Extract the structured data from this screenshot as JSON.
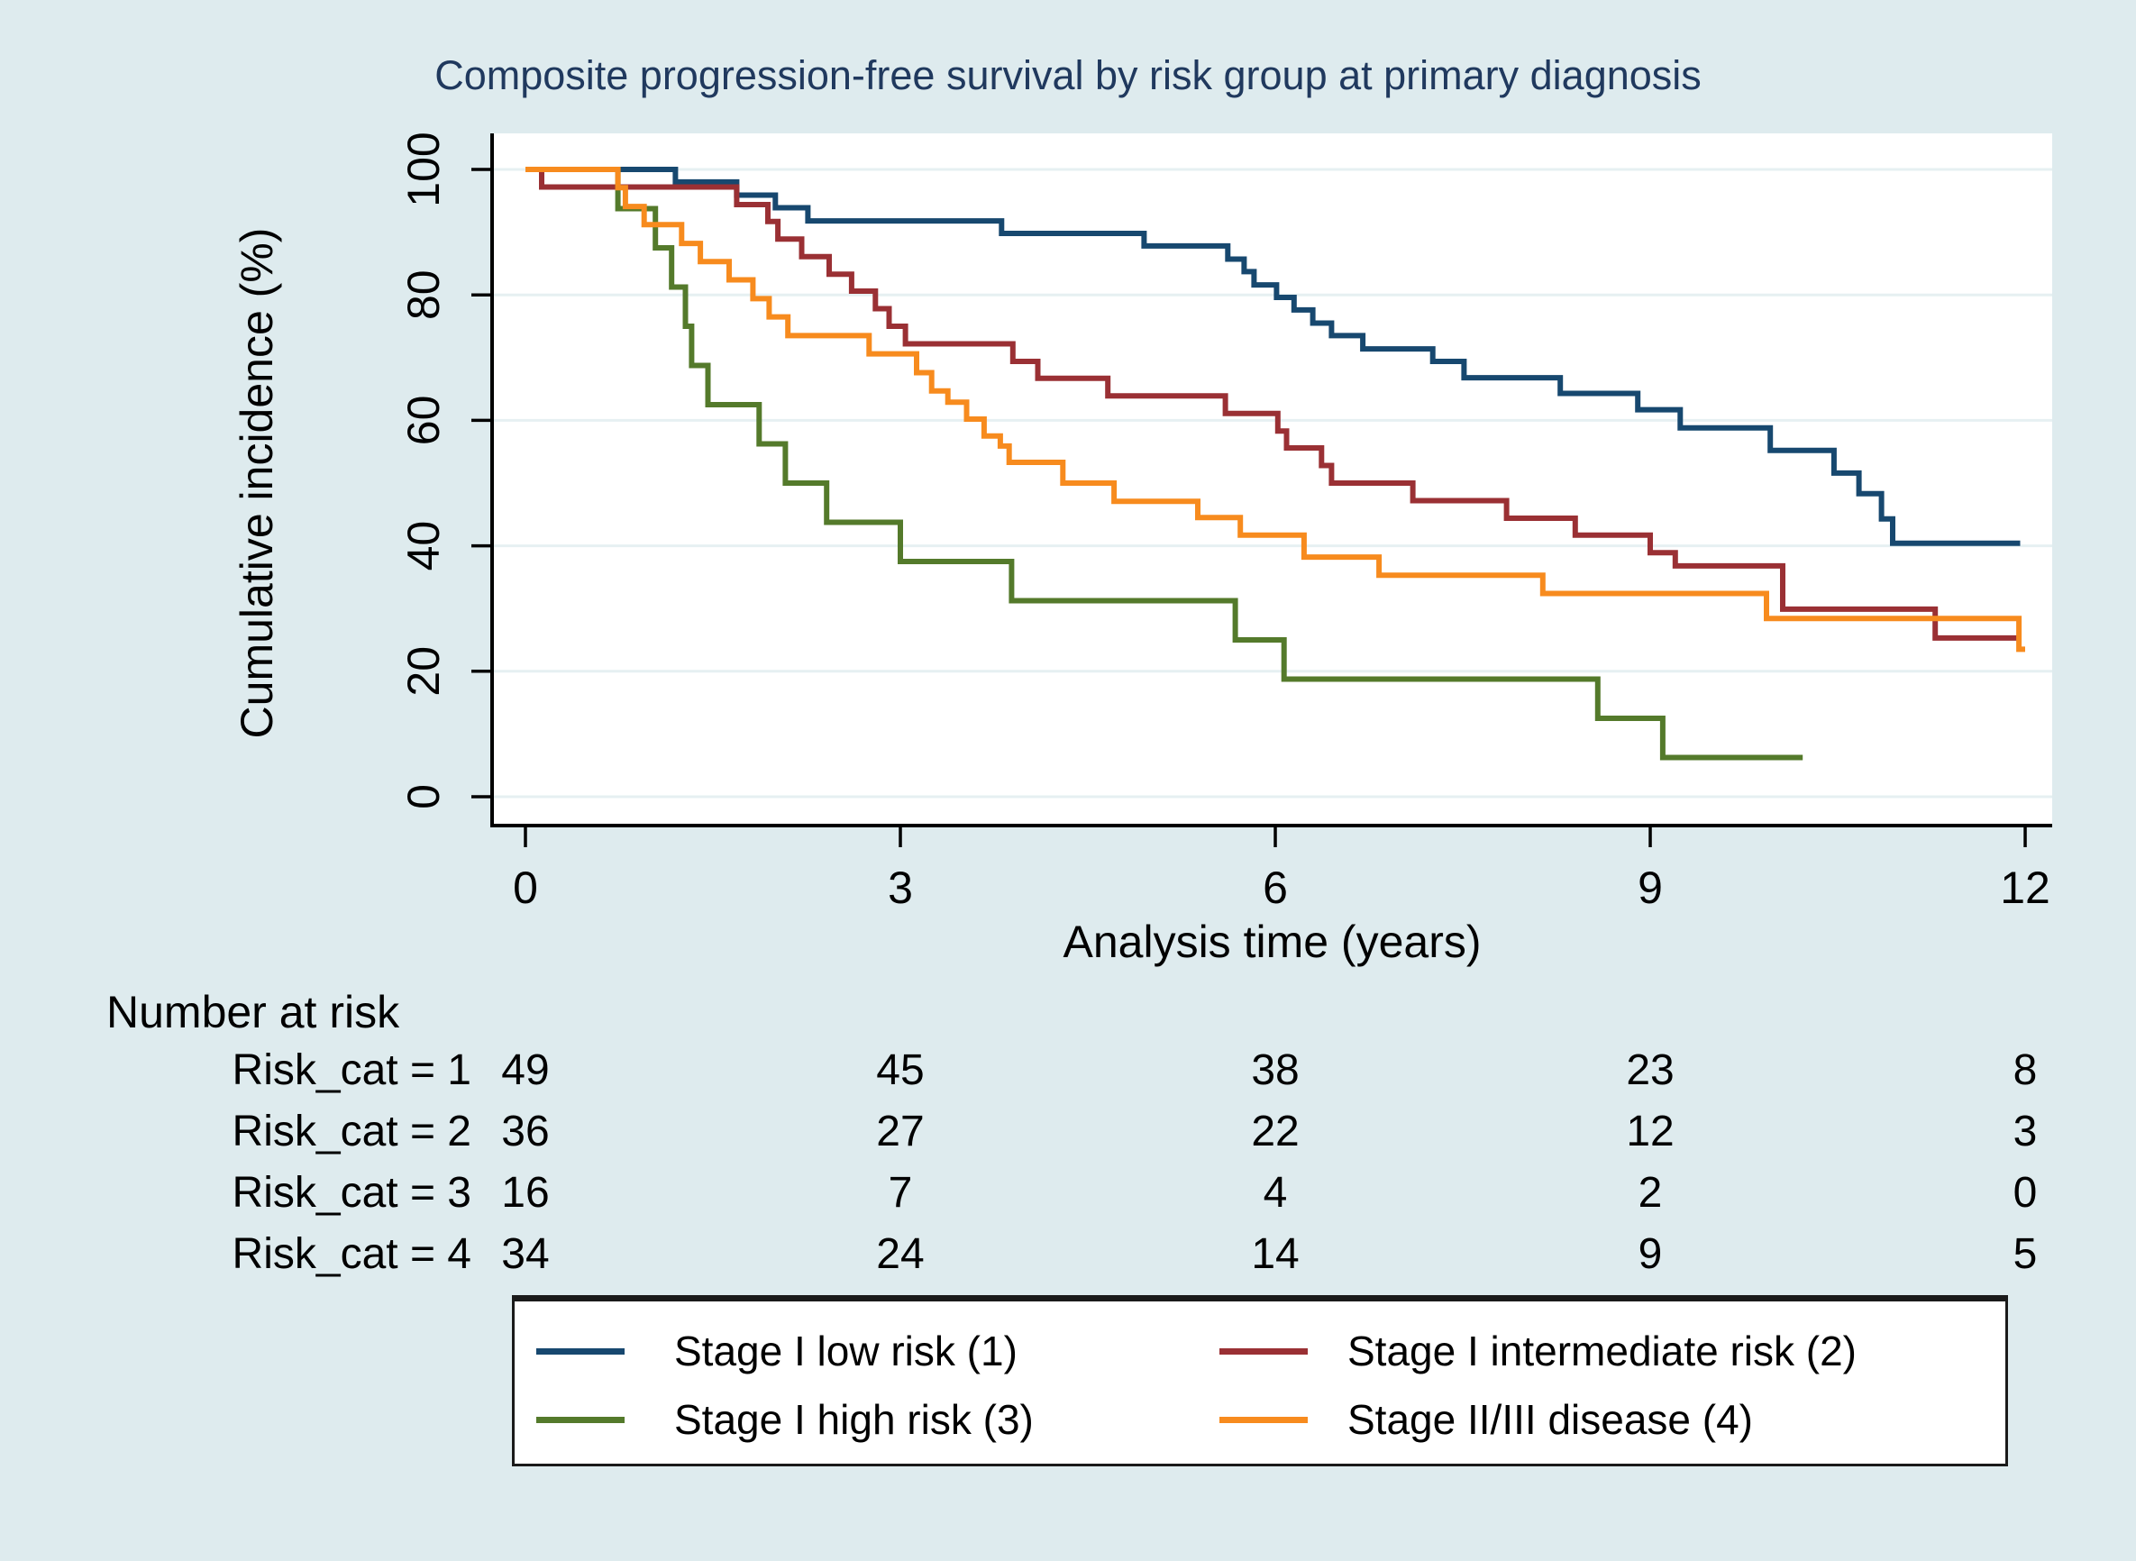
{
  "title": "Composite progression-free survival by risk group at primary diagnosis",
  "colors": {
    "background": "#DEEBEE",
    "plot_background": "#FFFFFF",
    "gridline": "#E6F0F2",
    "axis": "#000000",
    "title_text": "#20395E",
    "series_blue": "#17486F",
    "series_maroon": "#9A3034",
    "series_green": "#547A2B",
    "series_orange": "#F78B1E"
  },
  "chart_data": {
    "type": "line",
    "subtype": "step-survival",
    "title": "Composite progression-free survival by risk group at primary diagnosis",
    "xlabel": "Analysis time (years)",
    "ylabel": "Cumulative incidence (%)",
    "xlim": [
      0,
      12.2
    ],
    "ylim": [
      0,
      100
    ],
    "xticks": [
      0,
      3,
      6,
      9,
      12
    ],
    "yticks": [
      0,
      20,
      40,
      60,
      80,
      100
    ],
    "grid": "horizontal",
    "legend_position": "bottom",
    "series": [
      {
        "name": "Stage I low risk (1)",
        "color": "#17486F",
        "end": 11.96,
        "points": [
          [
            0,
            100
          ],
          [
            1.2,
            98.0
          ],
          [
            1.69,
            95.9
          ],
          [
            2.0,
            93.9
          ],
          [
            2.26,
            91.8
          ],
          [
            3.81,
            89.8
          ],
          [
            4.95,
            87.8
          ],
          [
            5.62,
            85.7
          ],
          [
            5.75,
            83.7
          ],
          [
            5.83,
            81.6
          ],
          [
            6.01,
            79.6
          ],
          [
            6.15,
            77.6
          ],
          [
            6.3,
            75.5
          ],
          [
            6.45,
            73.5
          ],
          [
            6.7,
            71.4
          ],
          [
            7.26,
            69.4
          ],
          [
            7.51,
            66.8
          ],
          [
            8.28,
            64.3
          ],
          [
            8.9,
            61.7
          ],
          [
            9.24,
            58.8
          ],
          [
            9.96,
            55.2
          ],
          [
            10.47,
            51.6
          ],
          [
            10.67,
            48.3
          ],
          [
            10.85,
            44.3
          ],
          [
            10.94,
            40.4
          ]
        ]
      },
      {
        "name": "Stage I intermediate risk (2)",
        "color": "#9A3034",
        "end": 11.94,
        "points": [
          [
            0,
            100
          ],
          [
            0.13,
            97.2
          ],
          [
            1.69,
            94.4
          ],
          [
            1.94,
            91.7
          ],
          [
            2.02,
            88.9
          ],
          [
            2.21,
            86.1
          ],
          [
            2.43,
            83.3
          ],
          [
            2.61,
            80.6
          ],
          [
            2.8,
            77.8
          ],
          [
            2.91,
            75.0
          ],
          [
            3.04,
            72.2
          ],
          [
            3.9,
            69.4
          ],
          [
            4.1,
            66.7
          ],
          [
            4.66,
            63.9
          ],
          [
            5.6,
            61.1
          ],
          [
            6.02,
            58.3
          ],
          [
            6.09,
            55.6
          ],
          [
            6.37,
            52.8
          ],
          [
            6.45,
            50.0
          ],
          [
            7.1,
            47.2
          ],
          [
            7.85,
            44.4
          ],
          [
            8.4,
            41.7
          ],
          [
            9.0,
            38.9
          ],
          [
            9.2,
            36.8
          ],
          [
            10.06,
            29.9
          ],
          [
            11.28,
            25.3
          ]
        ]
      },
      {
        "name": "Stage I high risk (3)",
        "color": "#547A2B",
        "end": 10.22,
        "points": [
          [
            0,
            100
          ],
          [
            0.74,
            93.75
          ],
          [
            1.04,
            87.5
          ],
          [
            1.17,
            81.25
          ],
          [
            1.28,
            75.0
          ],
          [
            1.33,
            68.75
          ],
          [
            1.46,
            62.5
          ],
          [
            1.87,
            56.25
          ],
          [
            2.08,
            50.0
          ],
          [
            2.41,
            43.75
          ],
          [
            3.0,
            37.5
          ],
          [
            3.89,
            31.25
          ],
          [
            5.68,
            25.0
          ],
          [
            6.07,
            18.75
          ],
          [
            8.58,
            12.5
          ],
          [
            9.1,
            6.25
          ]
        ]
      },
      {
        "name": "Stage II/III disease (4)",
        "color": "#F78B1E",
        "end": 12.0,
        "points": [
          [
            0,
            100
          ],
          [
            0.74,
            97.1
          ],
          [
            0.8,
            94.1
          ],
          [
            0.95,
            91.2
          ],
          [
            1.25,
            88.2
          ],
          [
            1.4,
            85.3
          ],
          [
            1.63,
            82.4
          ],
          [
            1.82,
            79.4
          ],
          [
            1.95,
            76.5
          ],
          [
            2.1,
            73.5
          ],
          [
            2.75,
            70.6
          ],
          [
            3.13,
            67.6
          ],
          [
            3.25,
            64.7
          ],
          [
            3.38,
            62.9
          ],
          [
            3.53,
            60.2
          ],
          [
            3.67,
            57.5
          ],
          [
            3.8,
            55.9
          ],
          [
            3.87,
            53.3
          ],
          [
            4.3,
            50.0
          ],
          [
            4.71,
            47.1
          ],
          [
            5.38,
            44.5
          ],
          [
            5.72,
            41.7
          ],
          [
            6.23,
            38.2
          ],
          [
            6.83,
            35.3
          ],
          [
            8.14,
            32.4
          ],
          [
            9.93,
            28.4
          ],
          [
            11.95,
            23.5
          ]
        ]
      }
    ]
  },
  "number_at_risk": {
    "header": "Number at risk",
    "times": [
      0,
      3,
      6,
      9,
      12
    ],
    "rows": [
      {
        "label": "Risk_cat = 1",
        "values": [
          "49",
          "45",
          "38",
          "23",
          "8"
        ]
      },
      {
        "label": "Risk_cat = 2",
        "values": [
          "36",
          "27",
          "22",
          "12",
          "3"
        ]
      },
      {
        "label": "Risk_cat = 3",
        "values": [
          "16",
          "7",
          "4",
          "2",
          "0"
        ]
      },
      {
        "label": "Risk_cat = 4",
        "values": [
          "34",
          "24",
          "14",
          "9",
          "5"
        ]
      }
    ]
  },
  "legend": {
    "entries": [
      {
        "label": "Stage I low risk (1)",
        "color": "#17486F"
      },
      {
        "label": "Stage I intermediate risk (2)",
        "color": "#9A3034"
      },
      {
        "label": "Stage I high risk (3)",
        "color": "#547A2B"
      },
      {
        "label": "Stage II/III disease (4)",
        "color": "#F78B1E"
      }
    ]
  }
}
